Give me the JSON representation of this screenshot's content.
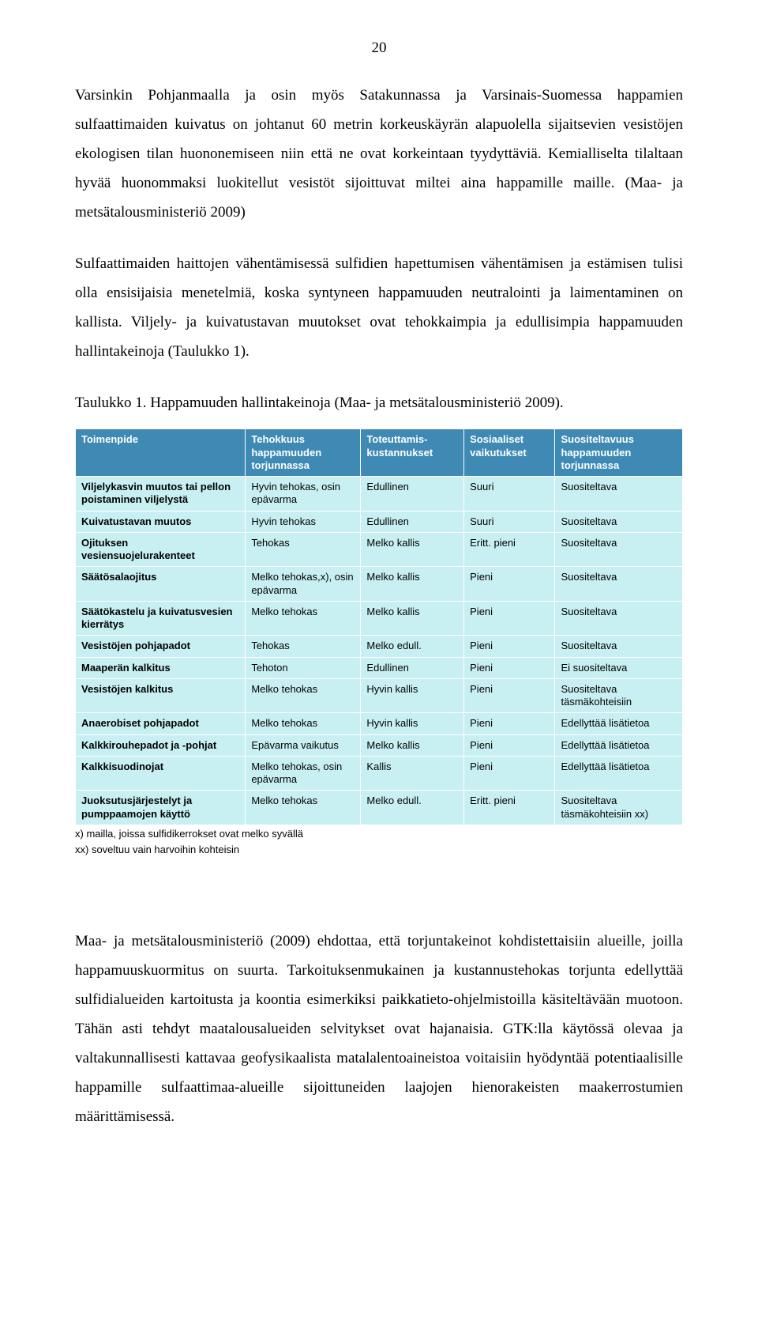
{
  "page_number": "20",
  "paragraphs": {
    "p1": "Varsinkin Pohjanmaalla ja osin myös Satakunnassa ja Varsinais-Suomessa happamien sulfaattimaiden kuivatus on johtanut 60 metrin korkeuskäyrän alapuolella sijaitsevien vesistöjen ekologisen tilan huononemiseen niin että ne ovat korkeintaan tyydyttäviä. Kemialliselta tilaltaan hyvää huonommaksi luokitellut vesistöt sijoittuvat miltei aina happamille maille. (Maa- ja metsätalousministeriö 2009)",
    "p2": "Sulfaattimaiden haittojen vähentämisessä sulfidien hapettumisen vähentämisen ja estämisen tulisi olla ensisijaisia menetelmiä, koska syntyneen happamuuden neutralointi ja laimentaminen on kallista. Viljely- ja kuivatustavan muutokset ovat tehokkaimpia ja edullisimpia happamuuden hallintakeinoja (Taulukko 1).",
    "caption": "Taulukko 1. Happamuuden hallintakeinoja (Maa- ja metsätalousministeriö 2009).",
    "p3": "Maa- ja metsätalousministeriö (2009) ehdottaa, että torjuntakeinot kohdistettaisiin alueille, joilla happamuuskuormitus on suurta. Tarkoituksenmukainen ja kustannustehokas torjunta edellyttää sulfidialueiden kartoitusta ja koontia esimerkiksi paikkatieto-ohjelmistoilla käsiteltävään muotoon. Tähän asti tehdyt maatalousalueiden selvitykset ovat hajanaisia. GTK:lla käytössä olevaa ja valtakunnallisesti kattavaa geofysikaalista matalalentoaineistoa voitaisiin hyödyntää potentiaalisille happamille sulfaattimaa-alueille sijoittuneiden laajojen hienorakeisten maakerrostumien määrittämisessä."
  },
  "table": {
    "colors": {
      "header_bg": "#3e8ab4",
      "header_fg": "#ffffff",
      "row_bg": "#c8f0f2",
      "row_fg": "#000000",
      "border": "#ffffff"
    },
    "col_widths": [
      "28%",
      "19%",
      "17%",
      "15%",
      "21%"
    ],
    "columns": [
      "Toimenpide",
      "Tehokkuus happamuuden torjunnassa",
      "Toteuttamis-kustannukset",
      "Sosiaaliset vaikutukset",
      "Suositeltavuus happamuuden torjunnassa"
    ],
    "rows": [
      [
        "Viljelykasvin muutos tai pellon poistaminen viljelystä",
        "Hyvin tehokas, osin epävarma",
        "Edullinen",
        "Suuri",
        "Suositeltava"
      ],
      [
        "Kuivatustavan muutos",
        "Hyvin tehokas",
        "Edullinen",
        "Suuri",
        "Suositeltava"
      ],
      [
        "Ojituksen vesiensuojelurakenteet",
        "Tehokas",
        "Melko kallis",
        "Eritt. pieni",
        "Suositeltava"
      ],
      [
        "Säätösalaojitus",
        "Melko tehokas,x), osin epävarma",
        "Melko kallis",
        "Pieni",
        "Suositeltava"
      ],
      [
        "Säätökastelu ja kuivatusvesien kierrätys",
        "Melko tehokas",
        "Melko kallis",
        "Pieni",
        "Suositeltava"
      ],
      [
        "Vesistöjen pohjapadot",
        "Tehokas",
        "Melko edull.",
        "Pieni",
        "Suositeltava"
      ],
      [
        "Maaperän kalkitus",
        "Tehoton",
        "Edullinen",
        "Pieni",
        "Ei suositeltava"
      ],
      [
        "Vesistöjen kalkitus",
        "Melko tehokas",
        "Hyvin kallis",
        "Pieni",
        "Suositeltava täsmäkohteisiin"
      ],
      [
        "Anaerobiset pohjapadot",
        "Melko tehokas",
        "Hyvin kallis",
        "Pieni",
        "Edellyttää lisätietoa"
      ],
      [
        "Kalkkirouhepadot ja -pohjat",
        "Epävarma vaikutus",
        "Melko kallis",
        "Pieni",
        "Edellyttää lisätietoa"
      ],
      [
        "Kalkkisuodinojat",
        "Melko tehokas, osin epävarma",
        "Kallis",
        "Pieni",
        "Edellyttää lisätietoa"
      ],
      [
        "Juoksutusjärjestelyt ja pumppaamojen käyttö",
        "Melko tehokas",
        "Melko edull.",
        "Eritt. pieni",
        "Suositeltava täsmäkohteisiin xx)"
      ]
    ],
    "footnotes": [
      "x) mailla, joissa sulfidikerrokset ovat melko syvällä",
      "xx) soveltuu vain harvoihin kohteisin"
    ]
  }
}
